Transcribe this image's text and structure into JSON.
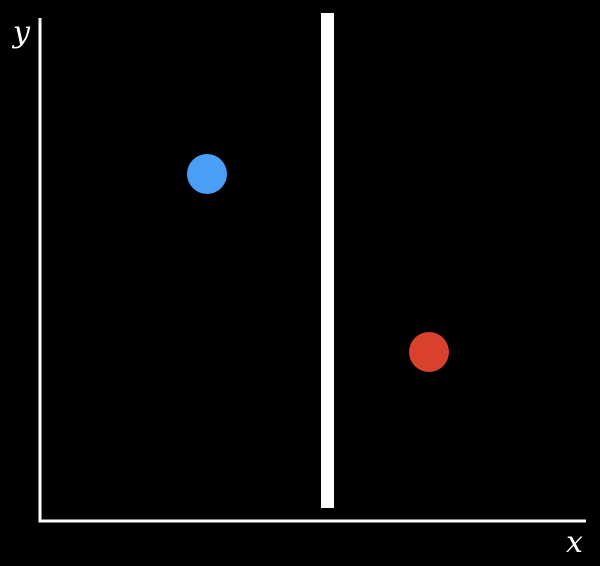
{
  "diagram": {
    "background": "#000000",
    "axis_color": "#ffffff",
    "x_axis_label": "x",
    "y_axis_label": "y",
    "divider_color": "#ffffff",
    "points": [
      {
        "name": "blue-point",
        "color": "#4a9ef5"
      },
      {
        "name": "red-point",
        "color": "#d9402e"
      }
    ]
  }
}
